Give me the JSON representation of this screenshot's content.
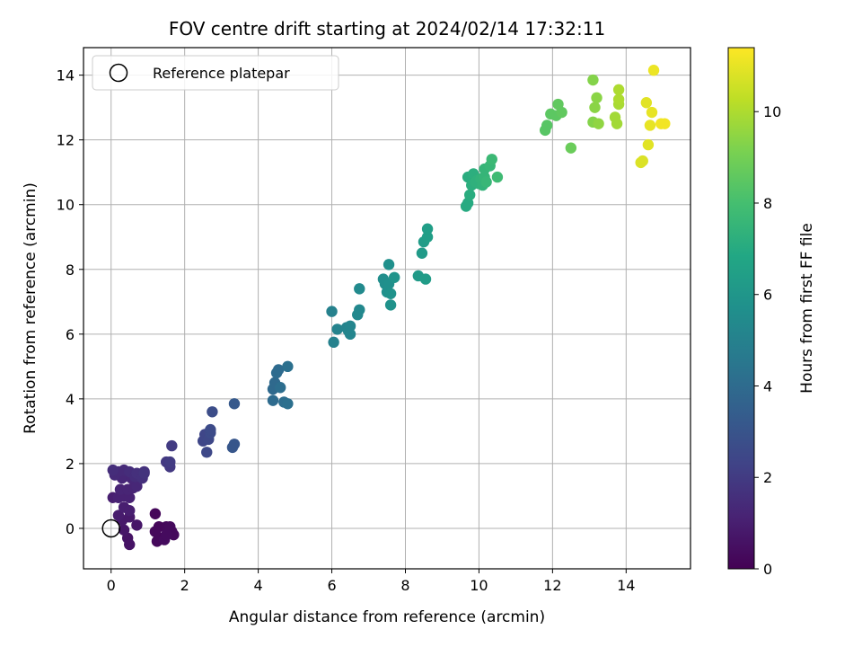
{
  "chart_data": {
    "type": "scatter",
    "title": "FOV centre drift starting at 2024/02/14 17:32:11",
    "xlabel": "Angular distance from reference (arcmin)",
    "ylabel": "Rotation from reference (arcmin)",
    "colorbar_label": "Hours from first FF file",
    "xlim": [
      -0.75,
      15.75
    ],
    "ylim": [
      -1.25,
      14.85
    ],
    "clim": [
      0,
      11.4
    ],
    "xticks": [
      "0",
      "2",
      "4",
      "6",
      "8",
      "10",
      "12",
      "14"
    ],
    "yticks": [
      "0",
      "2",
      "4",
      "6",
      "8",
      "10",
      "12",
      "14"
    ],
    "cticks": [
      "0",
      "2",
      "4",
      "6",
      "8",
      "10"
    ],
    "grid": true,
    "colormap": "viridis",
    "legend": {
      "placement": "top-left",
      "label": "Reference platepar"
    },
    "reference_point": {
      "x": 0,
      "y": 0
    },
    "points": [
      [
        1.2,
        0.45,
        0.2
      ],
      [
        1.3,
        0.05,
        0.2
      ],
      [
        1.35,
        -0.3,
        0.2
      ],
      [
        1.2,
        -0.1,
        0.25
      ],
      [
        1.25,
        -0.4,
        0.25
      ],
      [
        1.5,
        0.05,
        0.25
      ],
      [
        1.55,
        -0.1,
        0.3
      ],
      [
        1.65,
        -0.1,
        0.3
      ],
      [
        1.7,
        -0.2,
        0.3
      ],
      [
        1.6,
        0.05,
        0.3
      ],
      [
        1.45,
        -0.35,
        0.35
      ],
      [
        1.5,
        -0.2,
        0.35
      ],
      [
        0.45,
        -0.3,
        0.6
      ],
      [
        0.5,
        -0.5,
        0.6
      ],
      [
        0.35,
        -0.05,
        0.7
      ],
      [
        0.7,
        0.1,
        0.7
      ],
      [
        0.3,
        0.25,
        0.8
      ],
      [
        0.5,
        0.35,
        0.8
      ],
      [
        0.2,
        0.4,
        0.9
      ],
      [
        0.35,
        0.65,
        1.0
      ],
      [
        0.5,
        0.55,
        1.0
      ],
      [
        0.05,
        0.95,
        1.0
      ],
      [
        0.2,
        0.95,
        1.1
      ],
      [
        0.35,
        1.0,
        1.1
      ],
      [
        0.5,
        0.95,
        1.1
      ],
      [
        0.25,
        1.2,
        1.2
      ],
      [
        0.45,
        1.2,
        1.2
      ],
      [
        0.6,
        1.25,
        1.2
      ],
      [
        0.7,
        1.3,
        1.3
      ],
      [
        0.3,
        1.55,
        1.3
      ],
      [
        0.55,
        1.55,
        1.3
      ],
      [
        0.1,
        1.65,
        1.4
      ],
      [
        0.2,
        1.75,
        1.4
      ],
      [
        0.35,
        1.8,
        1.4
      ],
      [
        0.5,
        1.75,
        1.5
      ],
      [
        0.05,
        1.8,
        1.5
      ],
      [
        0.65,
        1.6,
        1.5
      ],
      [
        0.7,
        1.7,
        1.6
      ],
      [
        0.85,
        1.55,
        1.6
      ],
      [
        0.9,
        1.75,
        1.6
      ],
      [
        0.9,
        1.7,
        1.7
      ],
      [
        1.5,
        2.05,
        1.9
      ],
      [
        1.6,
        1.9,
        1.9
      ],
      [
        1.6,
        2.05,
        2.0
      ],
      [
        1.65,
        2.55,
        2.0
      ],
      [
        2.5,
        2.7,
        2.4
      ],
      [
        2.55,
        2.9,
        2.4
      ],
      [
        2.6,
        2.35,
        2.5
      ],
      [
        2.65,
        2.75,
        2.5
      ],
      [
        2.7,
        2.95,
        2.6
      ],
      [
        2.7,
        3.05,
        2.6
      ],
      [
        2.75,
        3.6,
        2.7
      ],
      [
        3.3,
        2.5,
        3.1
      ],
      [
        3.35,
        2.6,
        3.1
      ],
      [
        3.35,
        3.85,
        3.2
      ],
      [
        4.4,
        4.3,
        3.9
      ],
      [
        4.45,
        4.5,
        3.9
      ],
      [
        4.5,
        4.8,
        4.0
      ],
      [
        4.4,
        3.95,
        4.0
      ],
      [
        4.55,
        4.9,
        4.0
      ],
      [
        4.6,
        4.35,
        4.1
      ],
      [
        4.7,
        3.9,
        4.1
      ],
      [
        4.8,
        3.85,
        4.2
      ],
      [
        4.8,
        5.0,
        4.2
      ],
      [
        6.0,
        6.7,
        5.0
      ],
      [
        6.05,
        5.75,
        5.0
      ],
      [
        6.15,
        6.15,
        5.1
      ],
      [
        6.4,
        6.2,
        5.1
      ],
      [
        6.45,
        6.1,
        5.2
      ],
      [
        6.5,
        6.25,
        5.2
      ],
      [
        6.5,
        6.0,
        5.2
      ],
      [
        6.7,
        6.6,
        5.3
      ],
      [
        6.75,
        6.75,
        5.3
      ],
      [
        6.75,
        7.4,
        5.4
      ],
      [
        7.4,
        7.7,
        5.6
      ],
      [
        7.45,
        7.55,
        5.6
      ],
      [
        7.5,
        7.3,
        5.7
      ],
      [
        7.55,
        7.55,
        5.7
      ],
      [
        7.55,
        8.15,
        5.7
      ],
      [
        7.6,
        6.9,
        5.8
      ],
      [
        7.6,
        7.25,
        5.8
      ],
      [
        7.7,
        7.75,
        5.9
      ],
      [
        8.35,
        7.8,
        6.2
      ],
      [
        8.45,
        8.5,
        6.2
      ],
      [
        8.5,
        8.85,
        6.3
      ],
      [
        8.55,
        7.7,
        6.3
      ],
      [
        8.6,
        9.0,
        6.4
      ],
      [
        8.6,
        9.25,
        6.4
      ],
      [
        9.65,
        9.95,
        7.0
      ],
      [
        9.7,
        10.05,
        7.0
      ],
      [
        9.7,
        10.85,
        7.1
      ],
      [
        9.75,
        10.3,
        7.1
      ],
      [
        9.8,
        10.6,
        7.2
      ],
      [
        9.85,
        10.95,
        7.2
      ],
      [
        9.9,
        10.7,
        7.3
      ],
      [
        9.95,
        10.75,
        7.3
      ],
      [
        10.0,
        10.65,
        7.3
      ],
      [
        10.05,
        10.8,
        7.4
      ],
      [
        10.1,
        10.6,
        7.4
      ],
      [
        10.15,
        10.85,
        7.5
      ],
      [
        10.15,
        11.1,
        7.5
      ],
      [
        10.2,
        10.7,
        7.6
      ],
      [
        10.3,
        11.2,
        7.6
      ],
      [
        10.35,
        11.4,
        7.7
      ],
      [
        10.5,
        10.85,
        7.8
      ],
      [
        11.8,
        12.3,
        8.4
      ],
      [
        11.85,
        12.45,
        8.4
      ],
      [
        11.95,
        12.8,
        8.5
      ],
      [
        12.1,
        12.75,
        8.5
      ],
      [
        12.15,
        13.1,
        8.6
      ],
      [
        12.25,
        12.85,
        8.6
      ],
      [
        12.5,
        11.75,
        8.8
      ],
      [
        13.1,
        13.85,
        9.3
      ],
      [
        13.1,
        12.55,
        9.3
      ],
      [
        13.15,
        13.0,
        9.4
      ],
      [
        13.2,
        13.3,
        9.4
      ],
      [
        13.25,
        12.5,
        9.5
      ],
      [
        13.7,
        12.7,
        9.8
      ],
      [
        13.75,
        12.5,
        9.8
      ],
      [
        13.8,
        13.1,
        9.9
      ],
      [
        13.8,
        13.55,
        10.0
      ],
      [
        13.8,
        13.25,
        10.0
      ],
      [
        14.4,
        11.3,
        10.8
      ],
      [
        14.45,
        11.35,
        10.8
      ],
      [
        14.55,
        13.15,
        10.9
      ],
      [
        14.6,
        11.85,
        10.9
      ],
      [
        14.65,
        12.45,
        11.0
      ],
      [
        14.7,
        12.85,
        11.0
      ],
      [
        14.75,
        14.15,
        11.1
      ],
      [
        14.95,
        12.5,
        11.2
      ],
      [
        15.05,
        12.5,
        11.2
      ]
    ]
  }
}
